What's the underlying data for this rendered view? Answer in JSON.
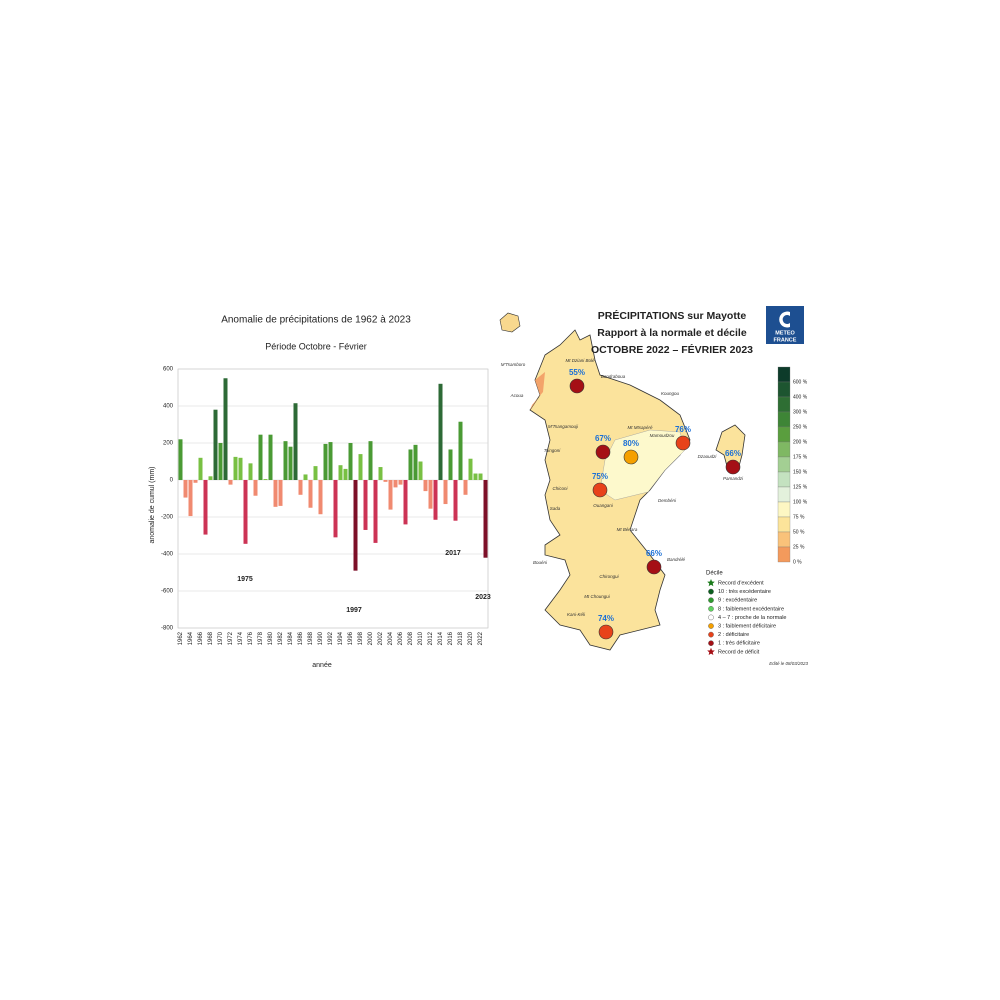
{
  "chart_data": {
    "type": "bar",
    "title": "Anomalie de précipitations de 1962 à 2023",
    "subtitle": "Période Octobre - Février",
    "ylabel": "anomalie de cumul (mm)",
    "xlabel": "année",
    "categories": [
      "1962",
      null,
      "1964",
      null,
      "1966",
      null,
      "1968",
      null,
      "1970",
      null,
      "1972",
      null,
      "1974",
      null,
      "1976",
      null,
      "1978",
      null,
      "1980",
      null,
      "1982",
      null,
      "1984",
      null,
      "1986",
      null,
      "1988",
      null,
      "1990",
      null,
      "1992",
      null,
      "1994",
      null,
      "1996",
      null,
      "1998",
      null,
      "2000",
      null,
      "2002",
      null,
      "2004",
      null,
      "2006",
      null,
      "2008",
      null,
      "2010",
      null,
      "2012",
      null,
      "2014",
      null,
      "2016",
      null,
      "2018",
      null,
      "2020",
      null,
      "2022",
      null
    ],
    "values": [
      220,
      -95,
      -195,
      -15,
      120,
      -295,
      20,
      380,
      200,
      550,
      -25,
      125,
      120,
      -345,
      90,
      -85,
      245,
      5,
      245,
      -145,
      -140,
      210,
      180,
      415,
      -80,
      30,
      -150,
      75,
      -185,
      195,
      205,
      -310,
      80,
      60,
      200,
      -490,
      140,
      -270,
      210,
      -340,
      70,
      -10,
      -160,
      -40,
      -25,
      -240,
      165,
      190,
      100,
      -60,
      -155,
      -215,
      520,
      -130,
      165,
      -220,
      315,
      -80,
      115,
      35,
      35,
      -420
    ],
    "colors": [
      "#4a9a34",
      "#f08a70",
      "#f08a70",
      "#f08a70",
      "#78c043",
      "#cc3355",
      "#78c043",
      "#2d6a36",
      "#4a9a34",
      "#2d6a36",
      "#f08a70",
      "#78c043",
      "#78c043",
      "#cc3355",
      "#78c043",
      "#f08a70",
      "#4a9a34",
      "#78c043",
      "#4a9a34",
      "#f08a70",
      "#f08a70",
      "#4a9a34",
      "#4a9a34",
      "#2d6a36",
      "#f08a70",
      "#78c043",
      "#f08a70",
      "#78c043",
      "#f08a70",
      "#4a9a34",
      "#4a9a34",
      "#cc3355",
      "#78c043",
      "#78c043",
      "#4a9a34",
      "#7d1028",
      "#78c043",
      "#cc3355",
      "#4a9a34",
      "#cc3355",
      "#78c043",
      "#f08a70",
      "#f08a70",
      "#f08a70",
      "#f08a70",
      "#cc3355",
      "#4a9a34",
      "#4a9a34",
      "#78c043",
      "#f08a70",
      "#f08a70",
      "#cc3355",
      "#2d6a36",
      "#f08a70",
      "#4a9a34",
      "#cc3355",
      "#4a9a34",
      "#f08a70",
      "#78c043",
      "#78c043",
      "#78c043",
      "#7d1028"
    ],
    "ylim": [
      -800,
      600
    ],
    "yticks": [
      -800,
      -600,
      -400,
      -200,
      0,
      200,
      400,
      600
    ],
    "grid": true,
    "annotations": [
      "1975",
      "1997",
      "2017",
      "2023"
    ]
  },
  "map": {
    "title": [
      "PRÉCIPITATIONS sur Mayotte",
      "Rapport à la normale et décile",
      "OCTOBRE 2022 – FÉVRIER 2023"
    ],
    "logo": [
      "METEO",
      "FRANCE"
    ],
    "stations": {
      "values": [
        55,
        67,
        80,
        76,
        66,
        75,
        66,
        74
      ],
      "value_labels": [
        "55%",
        "67%",
        "80%",
        "76%",
        "66%",
        "75%",
        "66%",
        "74%"
      ],
      "colors": [
        "#a50f15",
        "#a50f15",
        "#f5a000",
        "#e8421a",
        "#a50f15",
        "#e8421a",
        "#a50f15",
        "#e8421a"
      ]
    },
    "places": [
      "M'Tsamboro",
      "Mt Dziani Bolé",
      "Bandraboua",
      "Acoua",
      "Koungou",
      "M'Tsangamouji",
      "Mt Mtsapéré",
      "Mamoudzou",
      "Tsingoni",
      "Dzaoudzi",
      "Pamandzi",
      "Chiconi",
      "Sada",
      "Ouangani",
      "Dembéni",
      "Mt Bénara",
      "Bandrélé",
      "Bouéni",
      "Chirongui",
      "Mt Choungui",
      "Kani-Kéli"
    ],
    "scale": {
      "labels": [
        "600 %",
        "400 %",
        "300 %",
        "250 %",
        "200 %",
        "175 %",
        "150 %",
        "125 %",
        "100 %",
        "75 %",
        "50 %",
        "25 %",
        "0 %"
      ],
      "colors": [
        "#0d3b2a",
        "#1d5530",
        "#2e6e33",
        "#3e8536",
        "#5a9e3e",
        "#7fb863",
        "#a3cf93",
        "#c4e2c0",
        "#e3f1dc",
        "#fdf7c3",
        "#fce49a",
        "#f9c27a",
        "#f39a5c"
      ]
    },
    "legend": {
      "title": "Décile",
      "items": [
        {
          "label": "Record d'excédent",
          "color": "#1a7a1a",
          "shape": "star"
        },
        {
          "label": "10 : très excédentaire",
          "color": "#0b5e1e",
          "shape": "circle"
        },
        {
          "label": "9 : excédentaire",
          "color": "#2e9a2e",
          "shape": "circle"
        },
        {
          "label": "8 : faiblement excédentaire",
          "color": "#5fd35f",
          "shape": "circle"
        },
        {
          "label": "4 – 7 : proche de la normale",
          "color": "#ffffff",
          "shape": "circle"
        },
        {
          "label": "3 : faiblement déficitaire",
          "color": "#f5a000",
          "shape": "circle"
        },
        {
          "label": "2 : déficitaire",
          "color": "#e8421a",
          "shape": "circle"
        },
        {
          "label": "1 : très déficitaire",
          "color": "#a50f15",
          "shape": "circle"
        },
        {
          "label": "Record de déficit",
          "color": "#a50f15",
          "shape": "star"
        }
      ]
    },
    "edited": "Edité le 08/03/2023"
  }
}
